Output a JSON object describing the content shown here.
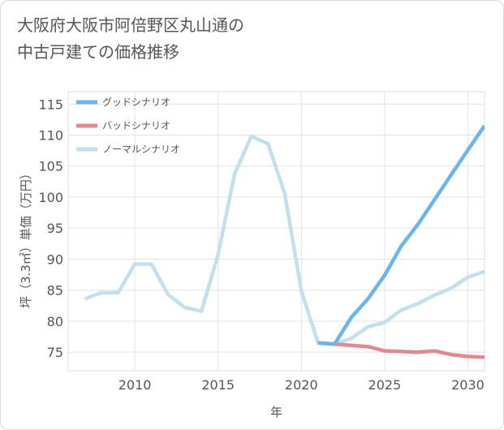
{
  "title_line1": "大阪府大阪市阿倍野区丸山通の",
  "title_line2": "中古戸建ての価格推移",
  "chart_data": {
    "type": "line",
    "title": "大阪府大阪市阿倍野区丸山通の中古戸建ての価格推移",
    "xlabel": "年",
    "ylabel": "坪（3.3㎡）単価（万円）",
    "xlim": [
      2006,
      2031
    ],
    "ylim": [
      72,
      117
    ],
    "xticks": [
      2010,
      2015,
      2020,
      2025,
      2030
    ],
    "yticks": [
      75,
      80,
      85,
      90,
      95,
      100,
      105,
      110,
      115
    ],
    "grid": true,
    "legend_position": "top-left",
    "series": [
      {
        "name": "グッドシナリオ",
        "color": "#6cb4ea",
        "x": [
          2021,
          2022,
          2023,
          2024,
          2025,
          2026,
          2027,
          2028,
          2029,
          2030,
          2031
        ],
        "values": [
          76.5,
          76.3,
          80.6,
          83.6,
          87.4,
          92.1,
          95.6,
          99.6,
          103.6,
          107.6,
          111.5
        ]
      },
      {
        "name": "バッドシナリオ",
        "color": "#e08a90",
        "x": [
          2021,
          2022,
          2023,
          2024,
          2025,
          2026,
          2027,
          2028,
          2029,
          2030,
          2031
        ],
        "values": [
          76.5,
          76.3,
          76.1,
          75.9,
          75.2,
          75.1,
          75.0,
          75.2,
          74.6,
          74.3,
          74.2
        ]
      },
      {
        "name": "ノーマルシナリオ",
        "color": "#c1dfed",
        "x": [
          2007,
          2008,
          2009,
          2010,
          2011,
          2012,
          2013,
          2014,
          2015,
          2016,
          2017,
          2018,
          2019,
          2020,
          2021,
          2022,
          2023,
          2024,
          2025,
          2026,
          2027,
          2028,
          2029,
          2030,
          2031
        ],
        "values": [
          83.6,
          84.6,
          84.6,
          89.2,
          89.2,
          84.3,
          82.2,
          81.6,
          90.7,
          103.8,
          109.8,
          108.6,
          100.6,
          84.9,
          76.5,
          76.3,
          77.2,
          79.1,
          79.8,
          81.8,
          82.8,
          84.2,
          85.3,
          87.1,
          88.0
        ]
      }
    ]
  }
}
